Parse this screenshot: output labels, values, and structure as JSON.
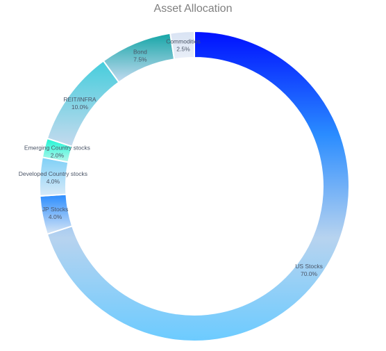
{
  "chart_data": {
    "type": "pie",
    "title": "Asset Allocation",
    "categories": [
      "US Stocks",
      "JP Stocks",
      "Developed Country stocks",
      "Emerging Country stocks",
      "REIT/INFRA",
      "Bond",
      "Commodities"
    ],
    "values": [
      70.0,
      4.0,
      4.0,
      2.0,
      10.0,
      7.5,
      2.5
    ],
    "value_labels": [
      "70.0%",
      "4.0%",
      "4.0%",
      "2.0%",
      "10.0%",
      "7.5%",
      "2.5%"
    ],
    "colors": [
      [
        "#0010ff",
        "#2a8cff",
        "#b7d3ef",
        "#6ccbff"
      ],
      [
        "#2a8cff",
        "#d8e6f5"
      ],
      [
        "#7fd0f7",
        "#d8eaf8"
      ],
      [
        "#1ef5d4",
        "#b8f6ec"
      ],
      [
        "#45cddc",
        "#c5daee"
      ],
      [
        "#14a5a6",
        "#c5dbf1"
      ],
      [
        "#d9e3f3",
        "#e9eff8"
      ]
    ],
    "legend": "none"
  }
}
